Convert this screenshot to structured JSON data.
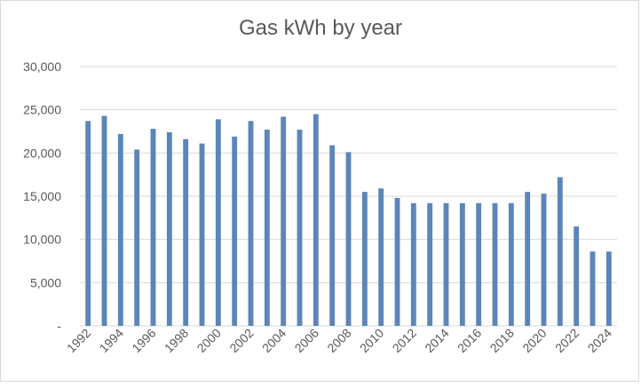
{
  "chart_data": {
    "type": "bar",
    "title": "Gas kWh by year",
    "xlabel": "",
    "ylabel": "",
    "ylim": [
      0,
      30000
    ],
    "y_ticks": [
      0,
      5000,
      10000,
      15000,
      20000,
      25000,
      30000
    ],
    "y_tick_labels": [
      "-",
      "5,000",
      "10,000",
      "15,000",
      "20,000",
      "25,000",
      "30,000"
    ],
    "grid": true,
    "legend": "none",
    "bar_color": "#5b86b9",
    "categories": [
      "1992",
      "1993",
      "1994",
      "1995",
      "1996",
      "1997",
      "1998",
      "1999",
      "2000",
      "2001",
      "2002",
      "2003",
      "2004",
      "2005",
      "2006",
      "2007",
      "2008",
      "2009",
      "2010",
      "2011",
      "2012",
      "2013",
      "2014",
      "2015",
      "2016",
      "2017",
      "2018",
      "2019",
      "2020",
      "2021",
      "2022",
      "2023",
      "2024"
    ],
    "x_tick_labels": [
      "1992",
      "1994",
      "1996",
      "1998",
      "2000",
      "2002",
      "2004",
      "2006",
      "2008",
      "2010",
      "2012",
      "2014",
      "2016",
      "2018",
      "2020",
      "2022",
      "2024"
    ],
    "values": [
      23700,
      24300,
      22200,
      20400,
      22800,
      22400,
      21600,
      21100,
      23900,
      21900,
      23700,
      22700,
      24200,
      22700,
      24500,
      20900,
      20100,
      15500,
      15900,
      14800,
      14200,
      14200,
      14200,
      14200,
      14200,
      14200,
      14200,
      15500,
      15300,
      17200,
      11500,
      8600,
      8600
    ]
  }
}
